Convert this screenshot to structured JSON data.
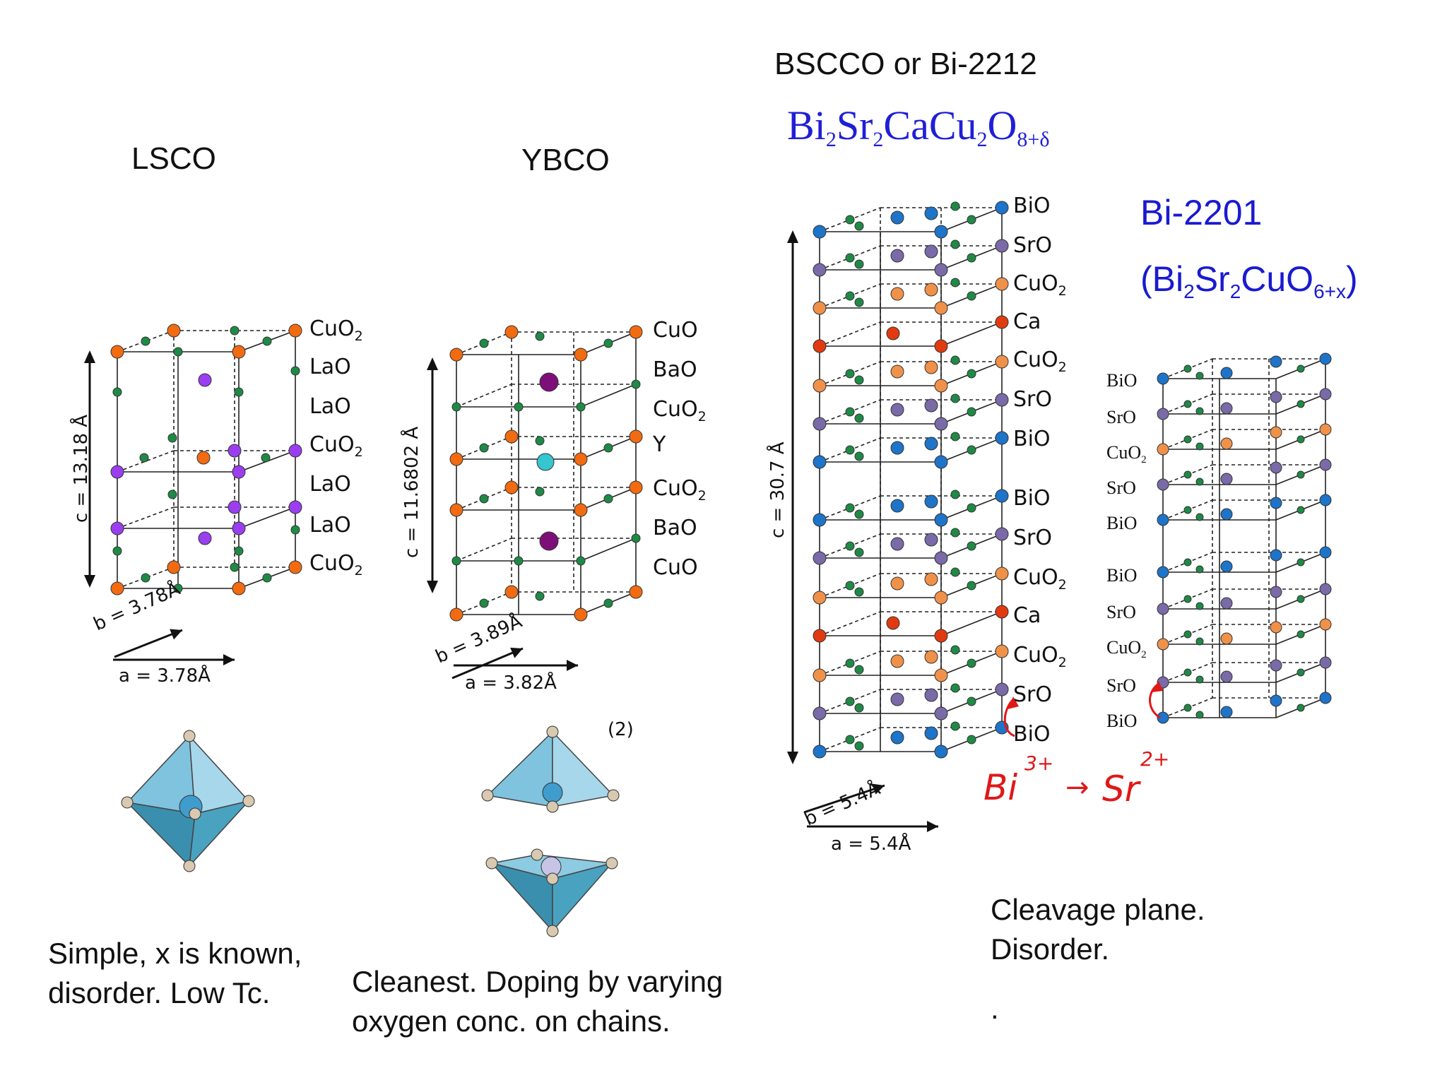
{
  "lsco": {
    "title": "LSCO",
    "layers": [
      {
        "html": "CuO<sub>2</sub>"
      },
      {
        "html": "LaO"
      },
      {
        "html": "LaO"
      },
      {
        "html": "CuO<sub>2</sub>"
      },
      {
        "html": "LaO"
      },
      {
        "html": "LaO"
      },
      {
        "html": "CuO<sub>2</sub>"
      }
    ],
    "c_axis": "c = 13.18 Å",
    "b_axis": "b = 3.78Å",
    "a_axis": "a = 3.78Å",
    "caption": "Simple, x is known, disorder. Low Tc."
  },
  "ybco": {
    "title": "YBCO",
    "layers": [
      {
        "html": "CuO"
      },
      {
        "html": "BaO"
      },
      {
        "html": "CuO<sub>2</sub>"
      },
      {
        "html": "Y"
      },
      {
        "html": "CuO<sub>2</sub>"
      },
      {
        "html": "BaO"
      },
      {
        "html": "CuO"
      }
    ],
    "c_axis": "c = 11.6802 Å",
    "b_axis": "b = 3.89Å",
    "a_axis": "a = 3.82Å",
    "ref": "(2)",
    "caption": "Cleanest. Doping by varying oxygen conc. on chains."
  },
  "bscco": {
    "title": "BSCCO or Bi-2212",
    "formula": "Bi<sub>2</sub>Sr<sub>2</sub>CaCu<sub>2</sub>O<sub>8+δ</sub>",
    "layers": [
      {
        "html": "BiO"
      },
      {
        "html": "SrO"
      },
      {
        "html": "CuO<sub>2</sub>"
      },
      {
        "html": "Ca"
      },
      {
        "html": "CuO<sub>2</sub>"
      },
      {
        "html": "SrO"
      },
      {
        "html": "BiO"
      },
      {
        "html": "BiO"
      },
      {
        "html": "SrO"
      },
      {
        "html": "CuO<sub>2</sub>"
      },
      {
        "html": "Ca"
      },
      {
        "html": "CuO<sub>2</sub>"
      },
      {
        "html": "SrO"
      },
      {
        "html": "BiO"
      }
    ],
    "c_axis": "c = 30.7 Å",
    "b_axis": "b = 5.4Å",
    "a_axis": "a = 5.4Å",
    "caption": "Cleavage plane. Disorder.",
    "dot": ".",
    "annotation": {
      "bi": "Bi",
      "bi_charge": "3+",
      "arrow": "→",
      "sr": "Sr",
      "sr_charge": "2+"
    }
  },
  "bi2201": {
    "title": "Bi-2201",
    "formula": "(Bi<sub>2</sub>Sr<sub>2</sub>CuO<sub>6+x</sub>)",
    "layers": [
      {
        "html": "BiO"
      },
      {
        "html": "SrO"
      },
      {
        "html": "CuO<sub>2</sub>"
      },
      {
        "html": "SrO"
      },
      {
        "html": "BiO"
      },
      {
        "html": "BiO"
      },
      {
        "html": "SrO"
      },
      {
        "html": "CuO<sub>2</sub>"
      },
      {
        "html": "SrO"
      },
      {
        "html": "BiO"
      }
    ]
  },
  "colors": {
    "cu": "#f26b11",
    "oxygen": "#1e8a46",
    "la": "#9b3ef0",
    "ba": "#7d1078",
    "y": "#35c6cf",
    "bi": "#1e74c8",
    "sr": "#7a6aa8",
    "ca": "#e23a10",
    "cu_light": "#f0914a",
    "octahedron": "#7fc3df",
    "octahedron_dark": "#3b8fae",
    "apex": "#d8c9b0",
    "formula_blue": "#1f1fd6",
    "annotation_red": "#e01818"
  }
}
